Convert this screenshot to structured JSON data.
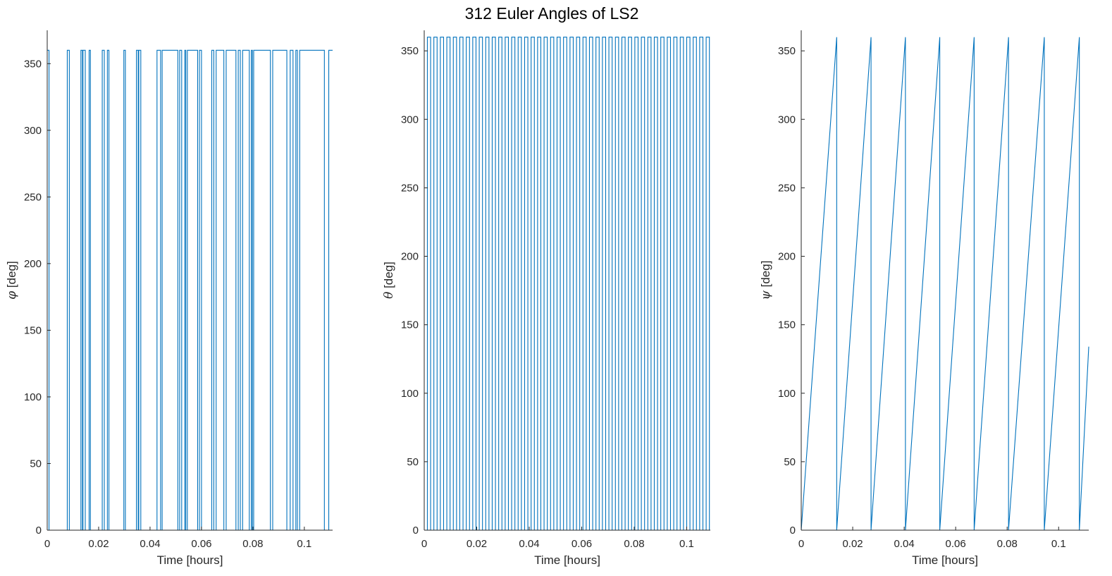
{
  "figure": {
    "title": "312 Euler Angles of LS2"
  },
  "colors": {
    "line": "#0072bd",
    "axis": "#262626"
  },
  "chart_data": [
    {
      "type": "line",
      "xlabel": "Time [hours]",
      "ylabel_symbol": "φ",
      "ylabel_unit": "[deg]",
      "xlim": [
        0,
        0.111
      ],
      "ylim": [
        0,
        375
      ],
      "xticks": [
        0,
        0.02,
        0.04,
        0.06,
        0.08,
        0.1
      ],
      "xtick_labels": [
        "0",
        "0.02",
        "0.04",
        "0.06",
        "0.08",
        "0.1"
      ],
      "yticks": [
        0,
        50,
        100,
        150,
        200,
        250,
        300,
        350
      ],
      "ytick_labels": [
        "0",
        "50",
        "100",
        "150",
        "200",
        "250",
        "300",
        "350"
      ],
      "signal": "binary",
      "levels": [
        0,
        360
      ],
      "start_level": 360,
      "toggles": [
        0.0007,
        0.0078,
        0.0086,
        0.0131,
        0.0137,
        0.0139,
        0.0148,
        0.0163,
        0.0168,
        0.0214,
        0.0222,
        0.0234,
        0.024,
        0.0298,
        0.0304,
        0.0347,
        0.0354,
        0.0356,
        0.0364,
        0.0427,
        0.0441,
        0.0447,
        0.0508,
        0.0515,
        0.0523,
        0.0535,
        0.0539,
        0.0545,
        0.0585,
        0.0592,
        0.06,
        0.064,
        0.0648,
        0.0657,
        0.0687,
        0.0696,
        0.0734,
        0.0743,
        0.0751,
        0.076,
        0.0786,
        0.0794,
        0.0798,
        0.0803,
        0.0868,
        0.0877,
        0.0932,
        0.0945,
        0.0956,
        0.0967,
        0.0973,
        0.0982,
        0.1078,
        0.1095
      ],
      "x_end": 0.111
    },
    {
      "type": "line",
      "xlabel": "Time [hours]",
      "ylabel_symbol": "θ",
      "ylabel_unit": "[deg]",
      "xlim": [
        0,
        0.109
      ],
      "ylim": [
        0,
        365
      ],
      "xticks": [
        0,
        0.02,
        0.04,
        0.06,
        0.08,
        0.1
      ],
      "xtick_labels": [
        "0",
        "0.02",
        "0.04",
        "0.06",
        "0.08",
        "0.1"
      ],
      "yticks": [
        0,
        50,
        100,
        150,
        200,
        250,
        300,
        350
      ],
      "ytick_labels": [
        "0",
        "50",
        "100",
        "150",
        "200",
        "250",
        "300",
        "350"
      ],
      "signal": "square",
      "levels": [
        0,
        360
      ],
      "start_level": 0,
      "first_toggle": 0.0012,
      "period": 0.00247,
      "x_end": 0.109
    },
    {
      "type": "line",
      "xlabel": "Time [hours]",
      "ylabel_symbol": "ψ",
      "ylabel_unit": "[deg]",
      "xlim": [
        0,
        0.1117
      ],
      "ylim": [
        0,
        365
      ],
      "xticks": [
        0,
        0.02,
        0.04,
        0.06,
        0.08,
        0.1
      ],
      "xtick_labels": [
        "0",
        "0.02",
        "0.04",
        "0.06",
        "0.08",
        "0.1"
      ],
      "yticks": [
        0,
        50,
        100,
        150,
        200,
        250,
        300,
        350
      ],
      "ytick_labels": [
        "0",
        "50",
        "100",
        "150",
        "200",
        "250",
        "300",
        "350"
      ],
      "signal": "sawtooth",
      "x": [
        0,
        0.01378,
        0.01378,
        0.02712,
        0.02712,
        0.04048,
        0.04048,
        0.05382,
        0.05382,
        0.06718,
        0.06718,
        0.08054,
        0.08054,
        0.09443,
        0.09443,
        0.10805,
        0.10805,
        0.1117
      ],
      "y": [
        0,
        360,
        0,
        360,
        0,
        360,
        0,
        360,
        0,
        360,
        0,
        360,
        0,
        360,
        0,
        360,
        0,
        134
      ]
    }
  ]
}
